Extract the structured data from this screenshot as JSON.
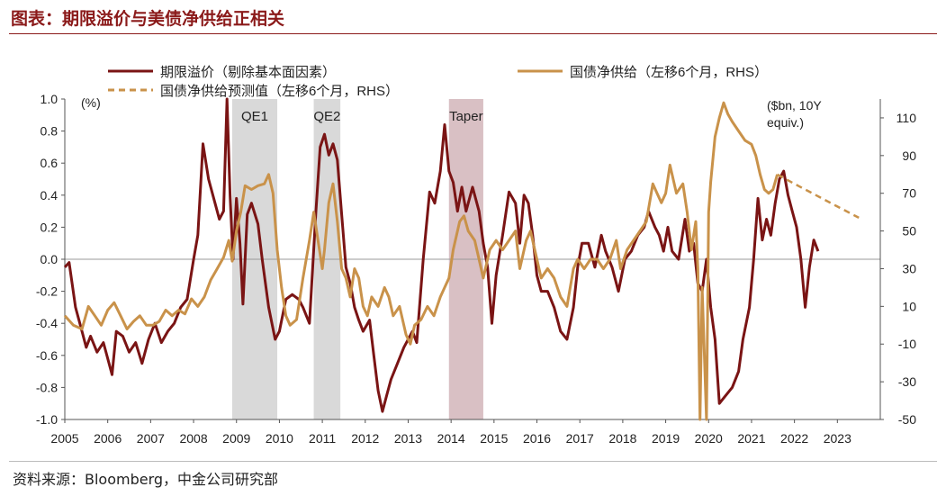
{
  "figure": {
    "title": "图表：期限溢价与美债净供给正相关",
    "source": "资料来源：Bloomberg，中金公司研究部"
  },
  "colors": {
    "term_premium": "#7A1414",
    "supply": "#C9924A",
    "title": "#8B1A1A",
    "qe_shade": "#D9D9D9",
    "taper_shade": "#D9C0C4"
  },
  "chart_data": {
    "type": "line",
    "title": "期限溢价与美债净供给正相关",
    "left_axis": {
      "label": "(%)",
      "min": -1.0,
      "max": 1.0,
      "ticks": [
        -1.0,
        -0.8,
        -0.6,
        -0.4,
        -0.2,
        0.0,
        0.2,
        0.4,
        0.6,
        0.8,
        1.0
      ]
    },
    "right_axis": {
      "label_line1": "($bn, 10Y",
      "label_line2": "equiv.)",
      "min": -50,
      "max": 120,
      "ticks": [
        -50,
        -30,
        -10,
        10,
        30,
        50,
        70,
        90,
        110
      ]
    },
    "x_axis": {
      "min": 2005,
      "max": 2024,
      "ticks": [
        "2005",
        "2006",
        "2007",
        "2008",
        "2009",
        "2010",
        "2011",
        "2012",
        "2013",
        "2014",
        "2015",
        "2016",
        "2017",
        "2018",
        "2019",
        "2020",
        "2021",
        "2022",
        "2023"
      ]
    },
    "shaded_periods": [
      {
        "label": "QE1",
        "start": 2008.9,
        "end": 2009.95,
        "kind": "qe"
      },
      {
        "label": "QE2",
        "start": 2010.8,
        "end": 2011.42,
        "kind": "qe"
      },
      {
        "label": "Taper",
        "start": 2013.95,
        "end": 2014.75,
        "kind": "taper"
      }
    ],
    "series": [
      {
        "name": "期限溢价（剔除基本面因素）",
        "axis": "left",
        "style": "solid",
        "points": [
          [
            2005.0,
            -0.05
          ],
          [
            2005.1,
            -0.02
          ],
          [
            2005.25,
            -0.3
          ],
          [
            2005.4,
            -0.45
          ],
          [
            2005.5,
            -0.55
          ],
          [
            2005.6,
            -0.48
          ],
          [
            2005.75,
            -0.58
          ],
          [
            2005.9,
            -0.52
          ],
          [
            2006.0,
            -0.62
          ],
          [
            2006.1,
            -0.72
          ],
          [
            2006.2,
            -0.45
          ],
          [
            2006.35,
            -0.48
          ],
          [
            2006.5,
            -0.58
          ],
          [
            2006.65,
            -0.52
          ],
          [
            2006.8,
            -0.65
          ],
          [
            2006.95,
            -0.5
          ],
          [
            2007.1,
            -0.4
          ],
          [
            2007.25,
            -0.52
          ],
          [
            2007.4,
            -0.45
          ],
          [
            2007.55,
            -0.4
          ],
          [
            2007.7,
            -0.3
          ],
          [
            2007.85,
            -0.25
          ],
          [
            2008.0,
            0.0
          ],
          [
            2008.1,
            0.15
          ],
          [
            2008.22,
            0.72
          ],
          [
            2008.35,
            0.5
          ],
          [
            2008.5,
            0.35
          ],
          [
            2008.6,
            0.25
          ],
          [
            2008.7,
            0.3
          ],
          [
            2008.78,
            1.0
          ],
          [
            2008.85,
            0.4
          ],
          [
            2008.92,
            0.0
          ],
          [
            2009.0,
            0.38
          ],
          [
            2009.08,
            0.1
          ],
          [
            2009.15,
            -0.28
          ],
          [
            2009.25,
            0.28
          ],
          [
            2009.35,
            0.35
          ],
          [
            2009.5,
            0.22
          ],
          [
            2009.6,
            0.0
          ],
          [
            2009.75,
            -0.3
          ],
          [
            2009.9,
            -0.5
          ],
          [
            2010.0,
            -0.45
          ],
          [
            2010.15,
            -0.25
          ],
          [
            2010.3,
            -0.22
          ],
          [
            2010.45,
            -0.25
          ],
          [
            2010.55,
            -0.3
          ],
          [
            2010.7,
            -0.4
          ],
          [
            2010.85,
            0.3
          ],
          [
            2010.95,
            0.7
          ],
          [
            2011.05,
            0.78
          ],
          [
            2011.15,
            0.65
          ],
          [
            2011.25,
            0.72
          ],
          [
            2011.35,
            0.62
          ],
          [
            2011.45,
            0.28
          ],
          [
            2011.55,
            -0.05
          ],
          [
            2011.65,
            -0.15
          ],
          [
            2011.75,
            -0.3
          ],
          [
            2011.85,
            -0.38
          ],
          [
            2011.95,
            -0.45
          ],
          [
            2012.1,
            -0.38
          ],
          [
            2012.2,
            -0.6
          ],
          [
            2012.3,
            -0.82
          ],
          [
            2012.4,
            -0.95
          ],
          [
            2012.5,
            -0.85
          ],
          [
            2012.6,
            -0.75
          ],
          [
            2012.75,
            -0.65
          ],
          [
            2012.9,
            -0.55
          ],
          [
            2013.0,
            -0.5
          ],
          [
            2013.1,
            -0.45
          ],
          [
            2013.2,
            -0.52
          ],
          [
            2013.35,
            0.0
          ],
          [
            2013.5,
            0.42
          ],
          [
            2013.62,
            0.35
          ],
          [
            2013.75,
            0.55
          ],
          [
            2013.85,
            0.84
          ],
          [
            2013.95,
            0.55
          ],
          [
            2014.05,
            0.48
          ],
          [
            2014.15,
            0.3
          ],
          [
            2014.25,
            0.45
          ],
          [
            2014.35,
            0.3
          ],
          [
            2014.5,
            0.45
          ],
          [
            2014.65,
            0.3
          ],
          [
            2014.75,
            0.1
          ],
          [
            2014.85,
            -0.05
          ],
          [
            2014.95,
            -0.4
          ],
          [
            2015.05,
            -0.1
          ],
          [
            2015.2,
            0.15
          ],
          [
            2015.35,
            0.42
          ],
          [
            2015.5,
            0.35
          ],
          [
            2015.6,
            0.1
          ],
          [
            2015.7,
            0.4
          ],
          [
            2015.8,
            0.35
          ],
          [
            2015.9,
            0.15
          ],
          [
            2016.0,
            -0.1
          ],
          [
            2016.1,
            -0.2
          ],
          [
            2016.25,
            -0.2
          ],
          [
            2016.4,
            -0.3
          ],
          [
            2016.55,
            -0.45
          ],
          [
            2016.7,
            -0.5
          ],
          [
            2016.85,
            -0.3
          ],
          [
            2016.95,
            -0.05
          ],
          [
            2017.05,
            0.1
          ],
          [
            2017.2,
            0.1
          ],
          [
            2017.35,
            -0.05
          ],
          [
            2017.5,
            0.15
          ],
          [
            2017.6,
            0.05
          ],
          [
            2017.75,
            -0.05
          ],
          [
            2017.9,
            -0.2
          ],
          [
            2018.05,
            0.0
          ],
          [
            2018.2,
            0.05
          ],
          [
            2018.35,
            0.15
          ],
          [
            2018.5,
            0.2
          ],
          [
            2018.6,
            0.3
          ],
          [
            2018.75,
            0.2
          ],
          [
            2018.85,
            0.15
          ],
          [
            2018.95,
            0.05
          ],
          [
            2019.05,
            0.2
          ],
          [
            2019.15,
            0.05
          ],
          [
            2019.3,
            0.0
          ],
          [
            2019.45,
            0.25
          ],
          [
            2019.55,
            0.05
          ],
          [
            2019.65,
            0.1
          ],
          [
            2019.75,
            -0.15
          ],
          [
            2019.85,
            -0.2
          ],
          [
            2019.95,
            0.0
          ],
          [
            2020.05,
            -0.3
          ],
          [
            2020.15,
            -0.5
          ],
          [
            2020.25,
            -0.9
          ],
          [
            2020.4,
            -0.85
          ],
          [
            2020.55,
            -0.8
          ],
          [
            2020.7,
            -0.7
          ],
          [
            2020.8,
            -0.5
          ],
          [
            2020.95,
            -0.3
          ],
          [
            2021.05,
            0.0
          ],
          [
            2021.15,
            0.38
          ],
          [
            2021.25,
            0.12
          ],
          [
            2021.35,
            0.25
          ],
          [
            2021.45,
            0.15
          ],
          [
            2021.55,
            0.35
          ],
          [
            2021.65,
            0.5
          ],
          [
            2021.75,
            0.55
          ],
          [
            2021.85,
            0.4
          ],
          [
            2021.95,
            0.3
          ],
          [
            2022.05,
            0.2
          ],
          [
            2022.15,
            0.0
          ],
          [
            2022.25,
            -0.3
          ],
          [
            2022.35,
            -0.05
          ],
          [
            2022.45,
            0.12
          ],
          [
            2022.55,
            0.05
          ]
        ]
      },
      {
        "name": "国债净供给（左移6个月，RHS）",
        "axis": "right",
        "style": "solid",
        "points": [
          [
            2005.0,
            5
          ],
          [
            2005.2,
            0
          ],
          [
            2005.4,
            -2
          ],
          [
            2005.55,
            10
          ],
          [
            2005.7,
            5
          ],
          [
            2005.85,
            0
          ],
          [
            2006.0,
            8
          ],
          [
            2006.15,
            12
          ],
          [
            2006.3,
            5
          ],
          [
            2006.45,
            -2
          ],
          [
            2006.6,
            2
          ],
          [
            2006.75,
            5
          ],
          [
            2006.9,
            0
          ],
          [
            2007.05,
            0
          ],
          [
            2007.2,
            2
          ],
          [
            2007.35,
            8
          ],
          [
            2007.5,
            5
          ],
          [
            2007.65,
            8
          ],
          [
            2007.8,
            6
          ],
          [
            2007.95,
            14
          ],
          [
            2008.1,
            10
          ],
          [
            2008.25,
            15
          ],
          [
            2008.4,
            24
          ],
          [
            2008.55,
            30
          ],
          [
            2008.7,
            36
          ],
          [
            2008.82,
            45
          ],
          [
            2008.9,
            34
          ],
          [
            2009.0,
            50
          ],
          [
            2009.1,
            60
          ],
          [
            2009.2,
            74
          ],
          [
            2009.35,
            72
          ],
          [
            2009.5,
            74
          ],
          [
            2009.65,
            75
          ],
          [
            2009.75,
            80
          ],
          [
            2009.85,
            70
          ],
          [
            2009.95,
            40
          ],
          [
            2010.05,
            20
          ],
          [
            2010.15,
            5
          ],
          [
            2010.25,
            0
          ],
          [
            2010.4,
            3
          ],
          [
            2010.55,
            25
          ],
          [
            2010.7,
            45
          ],
          [
            2010.8,
            60
          ],
          [
            2010.9,
            45
          ],
          [
            2011.0,
            30
          ],
          [
            2011.05,
            40
          ],
          [
            2011.15,
            65
          ],
          [
            2011.25,
            75
          ],
          [
            2011.35,
            55
          ],
          [
            2011.45,
            30
          ],
          [
            2011.55,
            25
          ],
          [
            2011.65,
            15
          ],
          [
            2011.75,
            30
          ],
          [
            2011.85,
            25
          ],
          [
            2011.95,
            10
          ],
          [
            2012.05,
            5
          ],
          [
            2012.15,
            15
          ],
          [
            2012.3,
            10
          ],
          [
            2012.45,
            20
          ],
          [
            2012.55,
            15
          ],
          [
            2012.65,
            5
          ],
          [
            2012.8,
            10
          ],
          [
            2012.95,
            -5
          ],
          [
            2013.05,
            -10
          ],
          [
            2013.15,
            0
          ],
          [
            2013.3,
            3
          ],
          [
            2013.45,
            10
          ],
          [
            2013.6,
            5
          ],
          [
            2013.75,
            15
          ],
          [
            2013.85,
            20
          ],
          [
            2013.95,
            25
          ],
          [
            2014.05,
            40
          ],
          [
            2014.2,
            55
          ],
          [
            2014.3,
            58
          ],
          [
            2014.4,
            50
          ],
          [
            2014.55,
            45
          ],
          [
            2014.65,
            35
          ],
          [
            2014.75,
            25
          ],
          [
            2014.9,
            40
          ],
          [
            2015.05,
            45
          ],
          [
            2015.2,
            40
          ],
          [
            2015.35,
            45
          ],
          [
            2015.5,
            50
          ],
          [
            2015.6,
            30
          ],
          [
            2015.75,
            45
          ],
          [
            2015.85,
            50
          ],
          [
            2015.95,
            40
          ],
          [
            2016.1,
            25
          ],
          [
            2016.25,
            30
          ],
          [
            2016.4,
            25
          ],
          [
            2016.55,
            15
          ],
          [
            2016.7,
            10
          ],
          [
            2016.85,
            30
          ],
          [
            2016.95,
            35
          ],
          [
            2017.1,
            30
          ],
          [
            2017.25,
            35
          ],
          [
            2017.4,
            35
          ],
          [
            2017.55,
            30
          ],
          [
            2017.7,
            35
          ],
          [
            2017.85,
            45
          ],
          [
            2017.95,
            30
          ],
          [
            2018.1,
            40
          ],
          [
            2018.25,
            45
          ],
          [
            2018.4,
            50
          ],
          [
            2018.55,
            55
          ],
          [
            2018.7,
            75
          ],
          [
            2018.8,
            70
          ],
          [
            2018.9,
            65
          ],
          [
            2019.0,
            70
          ],
          [
            2019.1,
            85
          ],
          [
            2019.25,
            70
          ],
          [
            2019.4,
            75
          ],
          [
            2019.5,
            60
          ],
          [
            2019.6,
            40
          ],
          [
            2019.7,
            55
          ],
          [
            2019.75,
            30
          ],
          [
            2019.8,
            -50
          ],
          [
            2019.85,
            20
          ],
          [
            2019.95,
            -50
          ],
          [
            2020.0,
            60
          ],
          [
            2020.05,
            76
          ],
          [
            2020.15,
            100
          ],
          [
            2020.25,
            110
          ],
          [
            2020.35,
            118
          ],
          [
            2020.45,
            112
          ],
          [
            2020.55,
            108
          ],
          [
            2020.7,
            103
          ],
          [
            2020.85,
            98
          ],
          [
            2021.0,
            96
          ],
          [
            2021.1,
            90
          ],
          [
            2021.2,
            80
          ],
          [
            2021.3,
            72
          ],
          [
            2021.4,
            70
          ],
          [
            2021.5,
            72
          ],
          [
            2021.6,
            80
          ]
        ]
      },
      {
        "name": "国债净供给预测值（左移6个月，RHS）",
        "axis": "right",
        "style": "dashed",
        "points": [
          [
            2021.6,
            80
          ],
          [
            2022.0,
            75
          ],
          [
            2022.5,
            69
          ],
          [
            2023.0,
            63
          ],
          [
            2023.5,
            57
          ]
        ]
      }
    ],
    "legend_placement": "top"
  }
}
